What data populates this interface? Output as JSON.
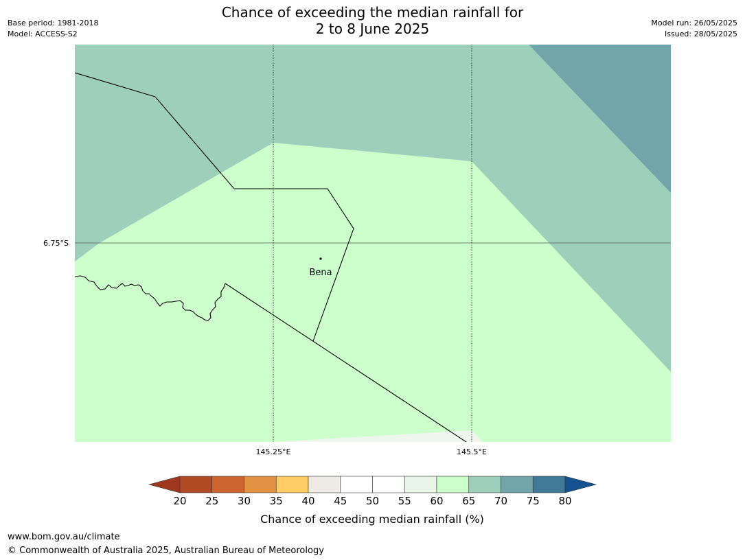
{
  "header": {
    "title_line1": "Chance of exceeding the median rainfall for",
    "title_line2": "2 to 8 June 2025",
    "base_period": "Base period: 1981-2018",
    "model": "Model: ACCESS-S2",
    "model_run": "Model run: 26/05/2025",
    "issued": "Issued: 28/05/2025"
  },
  "map": {
    "lat_label": "6.75°S",
    "lon_labels": [
      "145.25°E",
      "145.5°E"
    ],
    "place_label": "Bena",
    "fill_colors": {
      "60-65": "#ccffcc",
      "65-70": "#9ecfba",
      "70-75": "#71a5a9",
      "55-60": "#eef6ee"
    }
  },
  "legend": {
    "title": "Chance of exceeding median rainfall (%)",
    "ticks": [
      "20",
      "25",
      "30",
      "35",
      "40",
      "45",
      "50",
      "55",
      "60",
      "65",
      "70",
      "75",
      "80"
    ],
    "colors": [
      "#a0381f",
      "#b34a26",
      "#cc6530",
      "#e39244",
      "#ffcc66",
      "#eeeae6",
      "#ffffff",
      "#ffffff",
      "#eaf5ea",
      "#ccffcc",
      "#9ecfba",
      "#71a5a9",
      "#417a99",
      "#165290"
    ]
  },
  "footer": {
    "url": "www.bom.gov.au/climate",
    "copyright": "© Commonwealth of Australia 2025, Australian Bureau of Meteorology"
  }
}
